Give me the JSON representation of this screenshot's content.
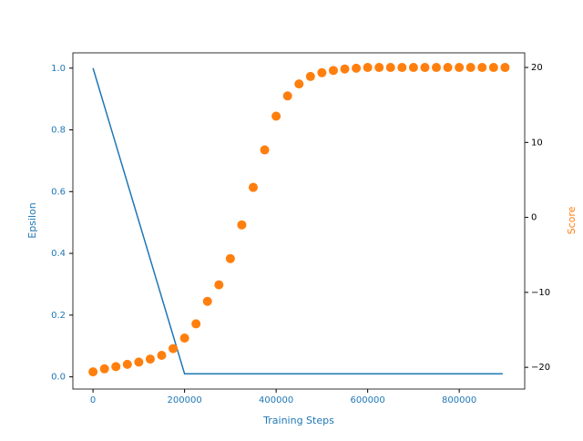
{
  "chart_data": {
    "type": "dual-axis",
    "xlabel": "Training Steps",
    "ylabel": "Epsilon",
    "y2label": "Score",
    "xlim": [
      -44000,
      943000
    ],
    "xticks": [
      0,
      200000,
      400000,
      600000,
      800000
    ],
    "ylim": [
      -0.0395,
      1.0495
    ],
    "yticks": [
      {
        "value": 0,
        "label": "0.0"
      },
      {
        "value": 0.2,
        "label": "0.2"
      },
      {
        "value": 0.4,
        "label": "0.4"
      },
      {
        "value": 0.6,
        "label": "0.6"
      },
      {
        "value": 0.8,
        "label": "0.8"
      },
      {
        "value": 1,
        "label": "1.0"
      }
    ],
    "y2lim": [
      -22.9,
      21.95
    ],
    "y2ticks": [
      {
        "value": -20,
        "label": "−20"
      },
      {
        "value": -10,
        "label": "−10"
      },
      0,
      10,
      20
    ],
    "series": [
      {
        "name": "Epsilon",
        "kind": "line",
        "color": "#1f77b4",
        "x": [
          0,
          200000,
          895000
        ],
        "values": [
          1.0,
          0.01,
          0.01
        ]
      },
      {
        "name": "Score",
        "kind": "scatter",
        "axis": "y2",
        "color": "#ff7f0e",
        "x": [
          0,
          25000,
          50000,
          75000,
          100000,
          125000,
          150000,
          175000,
          200000,
          225000,
          250000,
          275000,
          300000,
          325000,
          350000,
          375000,
          400000,
          425000,
          450000,
          475000,
          500000,
          525000,
          550000,
          575000,
          600000,
          625000,
          650000,
          675000,
          700000,
          725000,
          750000,
          775000,
          800000,
          825000,
          850000,
          875000,
          900000
        ],
        "values": [
          -20.6,
          -20.2,
          -19.9,
          -19.6,
          -19.3,
          -18.9,
          -18.4,
          -17.5,
          -16.1,
          -14.2,
          -11.2,
          -9,
          -5.5,
          -1,
          4,
          9,
          13.5,
          16.2,
          17.8,
          18.8,
          19.3,
          19.6,
          19.8,
          19.9,
          20,
          20,
          20,
          20,
          20,
          20,
          20,
          20,
          20,
          20,
          20,
          20,
          20
        ]
      }
    ]
  }
}
